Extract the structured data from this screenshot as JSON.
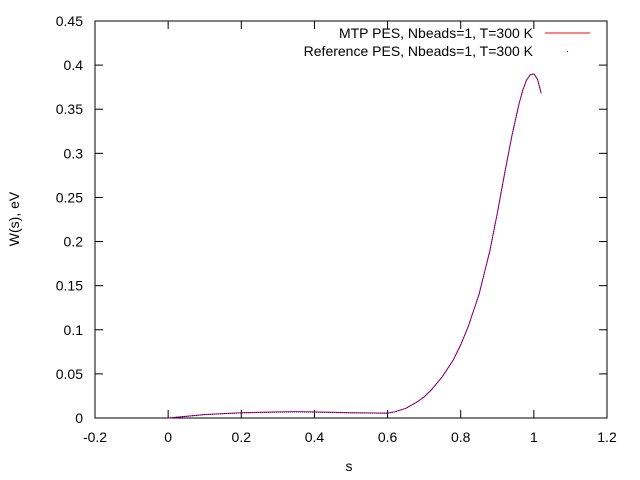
{
  "chart_data": {
    "type": "line",
    "xlabel": "s",
    "ylabel": "W(s), eV",
    "xlim": [
      -0.2,
      1.2
    ],
    "ylim": [
      0,
      0.45
    ],
    "xticks": [
      -0.2,
      0,
      0.2,
      0.4,
      0.6,
      0.8,
      1,
      1.2
    ],
    "xtick_labels": [
      "-0.2",
      "0",
      "0.2",
      "0.4",
      "0.6",
      "0.8",
      "1",
      "1.2"
    ],
    "yticks": [
      0,
      0.05,
      0.1,
      0.15,
      0.2,
      0.25,
      0.3,
      0.35,
      0.4,
      0.45
    ],
    "ytick_labels": [
      "0",
      "0.05",
      "0.1",
      "0.15",
      "0.2",
      "0.25",
      "0.3",
      "0.35",
      "0.4",
      "0.45"
    ],
    "grid": false,
    "legend_position": "top-right",
    "series": [
      {
        "name": "MTP PES, Nbeads=1, T=300 K",
        "color": "#ff0000",
        "style": "line",
        "x": [
          0.0,
          0.05,
          0.1,
          0.15,
          0.2,
          0.25,
          0.3,
          0.35,
          0.4,
          0.45,
          0.5,
          0.55,
          0.6,
          0.62,
          0.65,
          0.68,
          0.7,
          0.72,
          0.75,
          0.78,
          0.8,
          0.82,
          0.85,
          0.88,
          0.9,
          0.92,
          0.94,
          0.96,
          0.97,
          0.98,
          0.99,
          1.0,
          1.01,
          1.02
        ],
        "y": [
          0.0,
          0.002,
          0.004,
          0.005,
          0.006,
          0.0065,
          0.007,
          0.0072,
          0.007,
          0.0065,
          0.006,
          0.0058,
          0.0055,
          0.007,
          0.011,
          0.018,
          0.024,
          0.032,
          0.047,
          0.066,
          0.083,
          0.103,
          0.14,
          0.19,
          0.232,
          0.277,
          0.32,
          0.357,
          0.372,
          0.383,
          0.389,
          0.39,
          0.384,
          0.368
        ]
      },
      {
        "name": "Reference PES, Nbeads=1, T=300 K",
        "color": "#0000ff",
        "style": "dots",
        "x": [
          0.0,
          0.05,
          0.1,
          0.15,
          0.2,
          0.25,
          0.3,
          0.35,
          0.4,
          0.45,
          0.5,
          0.55,
          0.6,
          0.62,
          0.65,
          0.68,
          0.7,
          0.72,
          0.75,
          0.78,
          0.8,
          0.82,
          0.85,
          0.88,
          0.9,
          0.92,
          0.94,
          0.96,
          0.97,
          0.98,
          0.99,
          1.0,
          1.01,
          1.02
        ],
        "y": [
          0.0,
          0.0018,
          0.0038,
          0.0048,
          0.0058,
          0.0062,
          0.0066,
          0.0068,
          0.0066,
          0.0062,
          0.0058,
          0.0056,
          0.0054,
          0.007,
          0.011,
          0.018,
          0.024,
          0.032,
          0.047,
          0.066,
          0.083,
          0.103,
          0.14,
          0.19,
          0.232,
          0.277,
          0.32,
          0.357,
          0.372,
          0.383,
          0.389,
          0.39,
          0.384,
          0.368
        ]
      }
    ]
  }
}
